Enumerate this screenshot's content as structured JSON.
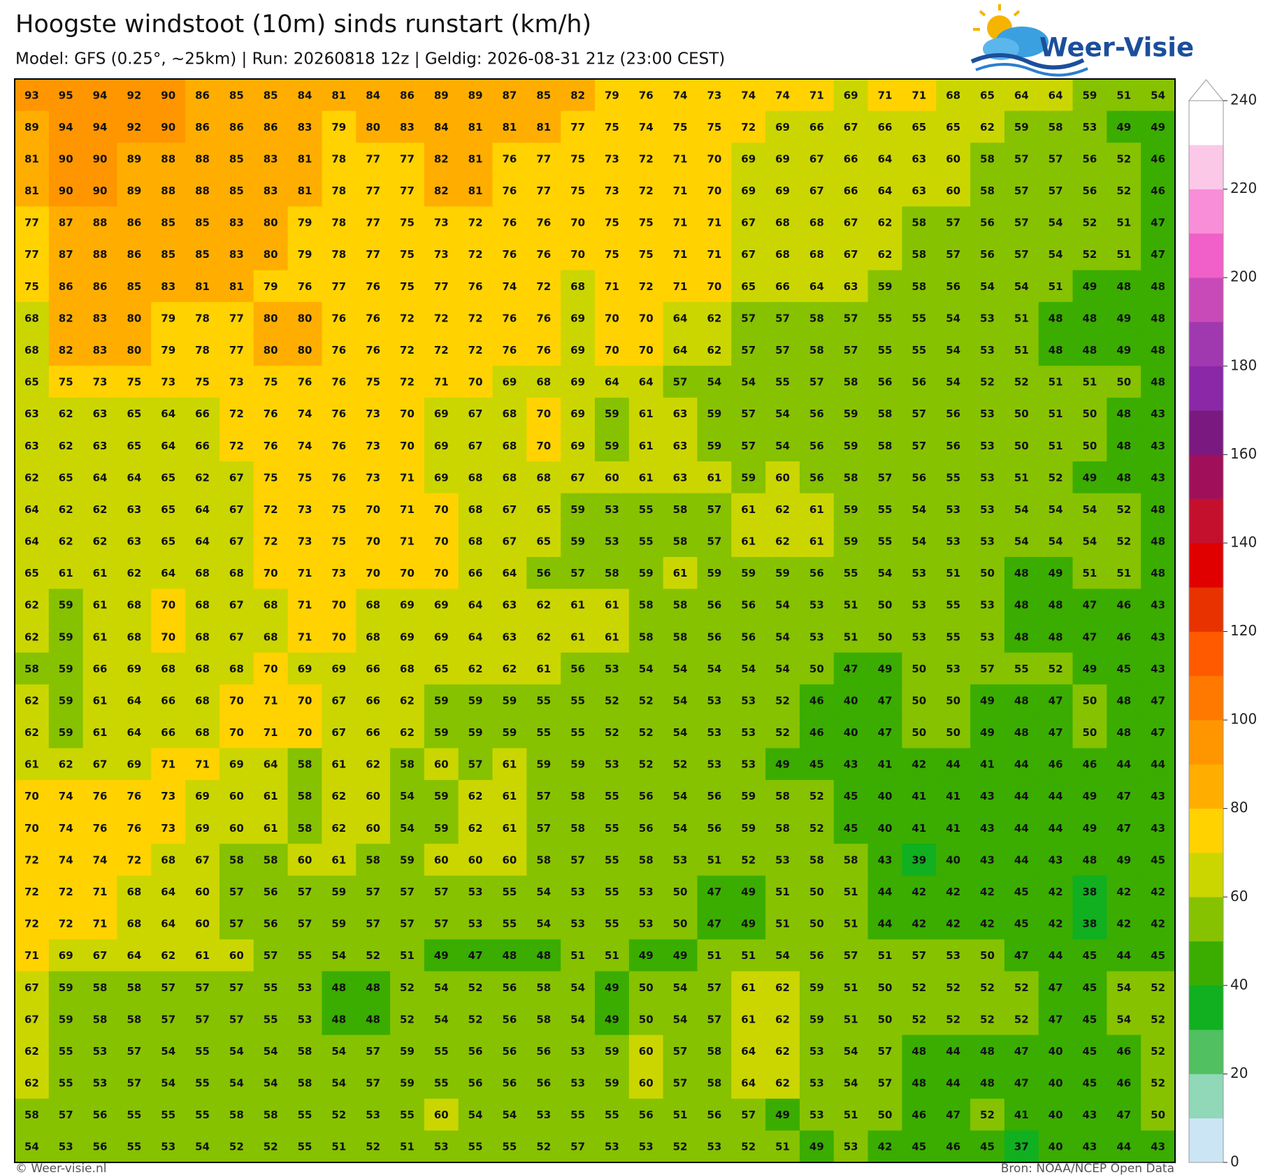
{
  "header": {
    "title": "Hoogste windstoot (10m) sinds runstart (km/h)",
    "subtitle": "Model: GFS (0.25°, ~25km)  |  Run: 20260818 12z  |  Geldig: 2026-08-31 21z (23:00 CEST)",
    "logo": "Weer-Visie"
  },
  "grid": {
    "rows": [
      [
        93,
        95,
        94,
        92,
        90,
        86,
        85,
        85,
        84,
        81,
        84,
        86,
        89,
        89,
        87,
        85,
        82,
        79,
        76,
        74,
        73,
        74,
        74,
        71,
        69,
        71,
        71,
        68,
        65,
        64,
        64,
        59,
        51,
        54
      ],
      [
        89,
        94,
        94,
        92,
        90,
        86,
        86,
        86,
        83,
        79,
        80,
        83,
        84,
        81,
        81,
        81,
        77,
        75,
        74,
        75,
        75,
        72,
        69,
        66,
        67,
        66,
        65,
        65,
        62,
        59,
        58,
        53,
        49,
        49
      ],
      [
        81,
        90,
        90,
        89,
        88,
        88,
        85,
        83,
        81,
        78,
        77,
        77,
        82,
        81,
        76,
        77,
        75,
        73,
        72,
        71,
        70,
        69,
        69,
        67,
        66,
        64,
        63,
        60,
        58,
        57,
        57,
        56,
        52,
        46
      ],
      [
        81,
        90,
        90,
        89,
        88,
        88,
        85,
        83,
        81,
        78,
        77,
        77,
        82,
        81,
        76,
        77,
        75,
        73,
        72,
        71,
        70,
        69,
        69,
        67,
        66,
        64,
        63,
        60,
        58,
        57,
        57,
        56,
        52,
        46
      ],
      [
        77,
        87,
        88,
        86,
        85,
        85,
        83,
        80,
        79,
        78,
        77,
        75,
        73,
        72,
        76,
        76,
        70,
        75,
        75,
        71,
        71,
        67,
        68,
        68,
        67,
        62,
        58,
        57,
        56,
        57,
        54,
        52,
        51,
        47
      ],
      [
        77,
        87,
        88,
        86,
        85,
        85,
        83,
        80,
        79,
        78,
        77,
        75,
        73,
        72,
        76,
        76,
        70,
        75,
        75,
        71,
        71,
        67,
        68,
        68,
        67,
        62,
        58,
        57,
        56,
        57,
        54,
        52,
        51,
        47
      ],
      [
        75,
        86,
        86,
        85,
        83,
        81,
        81,
        79,
        76,
        77,
        76,
        75,
        77,
        76,
        74,
        72,
        68,
        71,
        72,
        71,
        70,
        65,
        66,
        64,
        63,
        59,
        58,
        56,
        54,
        54,
        51,
        49,
        48,
        48
      ],
      [
        68,
        82,
        83,
        80,
        79,
        78,
        77,
        80,
        80,
        76,
        76,
        72,
        72,
        72,
        76,
        76,
        69,
        70,
        70,
        64,
        62,
        57,
        57,
        58,
        57,
        55,
        55,
        54,
        53,
        51,
        48,
        48,
        49,
        48
      ],
      [
        68,
        82,
        83,
        80,
        79,
        78,
        77,
        80,
        80,
        76,
        76,
        72,
        72,
        72,
        76,
        76,
        69,
        70,
        70,
        64,
        62,
        57,
        57,
        58,
        57,
        55,
        55,
        54,
        53,
        51,
        48,
        48,
        49,
        48
      ],
      [
        65,
        75,
        73,
        75,
        73,
        75,
        73,
        75,
        76,
        76,
        75,
        72,
        71,
        70,
        69,
        68,
        69,
        64,
        64,
        57,
        54,
        54,
        55,
        57,
        58,
        56,
        56,
        54,
        52,
        52,
        51,
        51,
        50,
        48
      ],
      [
        63,
        62,
        63,
        65,
        64,
        66,
        72,
        76,
        74,
        76,
        73,
        70,
        69,
        67,
        68,
        70,
        69,
        59,
        61,
        63,
        59,
        57,
        54,
        56,
        59,
        58,
        57,
        56,
        53,
        50,
        51,
        50,
        48,
        43
      ],
      [
        63,
        62,
        63,
        65,
        64,
        66,
        72,
        76,
        74,
        76,
        73,
        70,
        69,
        67,
        68,
        70,
        69,
        59,
        61,
        63,
        59,
        57,
        54,
        56,
        59,
        58,
        57,
        56,
        53,
        50,
        51,
        50,
        48,
        43
      ],
      [
        62,
        65,
        64,
        64,
        65,
        62,
        67,
        75,
        75,
        76,
        73,
        71,
        69,
        68,
        68,
        68,
        67,
        60,
        61,
        63,
        61,
        59,
        60,
        56,
        58,
        57,
        56,
        55,
        53,
        51,
        52,
        49,
        48,
        43
      ],
      [
        64,
        62,
        62,
        63,
        65,
        64,
        67,
        72,
        73,
        75,
        70,
        71,
        70,
        68,
        67,
        65,
        59,
        53,
        55,
        58,
        57,
        61,
        62,
        61,
        59,
        55,
        54,
        53,
        53,
        54,
        54,
        54,
        52,
        48
      ],
      [
        64,
        62,
        62,
        63,
        65,
        64,
        67,
        72,
        73,
        75,
        70,
        71,
        70,
        68,
        67,
        65,
        59,
        53,
        55,
        58,
        57,
        61,
        62,
        61,
        59,
        55,
        54,
        53,
        53,
        54,
        54,
        54,
        52,
        48
      ],
      [
        65,
        61,
        61,
        62,
        64,
        68,
        68,
        70,
        71,
        73,
        70,
        70,
        70,
        66,
        64,
        56,
        57,
        58,
        59,
        61,
        59,
        59,
        59,
        56,
        55,
        54,
        53,
        51,
        50,
        48,
        49,
        51,
        51,
        48
      ],
      [
        62,
        59,
        61,
        68,
        70,
        68,
        67,
        68,
        71,
        70,
        68,
        69,
        69,
        64,
        63,
        62,
        61,
        61,
        58,
        58,
        56,
        56,
        54,
        53,
        51,
        50,
        53,
        55,
        53,
        48,
        48,
        47,
        46,
        43
      ],
      [
        62,
        59,
        61,
        68,
        70,
        68,
        67,
        68,
        71,
        70,
        68,
        69,
        69,
        64,
        63,
        62,
        61,
        61,
        58,
        58,
        56,
        56,
        54,
        53,
        51,
        50,
        53,
        55,
        53,
        48,
        48,
        47,
        46,
        43
      ],
      [
        58,
        59,
        66,
        69,
        68,
        68,
        68,
        70,
        69,
        69,
        66,
        68,
        65,
        62,
        62,
        61,
        56,
        53,
        54,
        54,
        54,
        54,
        54,
        50,
        47,
        49,
        50,
        53,
        57,
        55,
        52,
        49,
        45,
        43
      ],
      [
        62,
        59,
        61,
        64,
        66,
        68,
        70,
        71,
        70,
        67,
        66,
        62,
        59,
        59,
        59,
        55,
        55,
        52,
        52,
        54,
        53,
        53,
        52,
        46,
        40,
        47,
        50,
        50,
        49,
        48,
        47,
        50,
        48,
        47
      ],
      [
        62,
        59,
        61,
        64,
        66,
        68,
        70,
        71,
        70,
        67,
        66,
        62,
        59,
        59,
        59,
        55,
        55,
        52,
        52,
        54,
        53,
        53,
        52,
        46,
        40,
        47,
        50,
        50,
        49,
        48,
        47,
        50,
        48,
        47
      ],
      [
        61,
        62,
        67,
        69,
        71,
        71,
        69,
        64,
        58,
        61,
        62,
        58,
        60,
        57,
        61,
        59,
        59,
        53,
        52,
        52,
        53,
        53,
        49,
        45,
        43,
        41,
        42,
        44,
        41,
        44,
        46,
        46,
        44,
        44
      ],
      [
        70,
        74,
        76,
        76,
        73,
        69,
        60,
        61,
        58,
        62,
        60,
        54,
        59,
        62,
        61,
        57,
        58,
        55,
        56,
        54,
        56,
        59,
        58,
        52,
        45,
        40,
        41,
        41,
        43,
        44,
        44,
        49,
        47,
        43
      ],
      [
        70,
        74,
        76,
        76,
        73,
        69,
        60,
        61,
        58,
        62,
        60,
        54,
        59,
        62,
        61,
        57,
        58,
        55,
        56,
        54,
        56,
        59,
        58,
        52,
        45,
        40,
        41,
        41,
        43,
        44,
        44,
        49,
        47,
        43
      ],
      [
        72,
        74,
        74,
        72,
        68,
        67,
        58,
        58,
        60,
        61,
        58,
        59,
        60,
        60,
        60,
        58,
        57,
        55,
        58,
        53,
        51,
        52,
        53,
        58,
        58,
        43,
        39,
        40,
        43,
        44,
        43,
        48,
        49,
        45
      ],
      [
        72,
        72,
        71,
        68,
        64,
        60,
        57,
        56,
        57,
        59,
        57,
        57,
        57,
        53,
        55,
        54,
        53,
        55,
        53,
        50,
        47,
        49,
        51,
        50,
        51,
        44,
        42,
        42,
        42,
        45,
        42,
        38,
        42,
        42
      ],
      [
        72,
        72,
        71,
        68,
        64,
        60,
        57,
        56,
        57,
        59,
        57,
        57,
        57,
        53,
        55,
        54,
        53,
        55,
        53,
        50,
        47,
        49,
        51,
        50,
        51,
        44,
        42,
        42,
        42,
        45,
        42,
        38,
        42,
        42
      ],
      [
        71,
        69,
        67,
        64,
        62,
        61,
        60,
        57,
        55,
        54,
        52,
        51,
        49,
        47,
        48,
        48,
        51,
        51,
        49,
        49,
        51,
        51,
        54,
        56,
        57,
        51,
        57,
        53,
        50,
        47,
        44,
        45,
        44,
        45
      ],
      [
        67,
        59,
        58,
        58,
        57,
        57,
        57,
        55,
        53,
        48,
        48,
        52,
        54,
        52,
        56,
        58,
        54,
        49,
        50,
        54,
        57,
        61,
        62,
        59,
        51,
        50,
        52,
        52,
        52,
        52,
        47,
        45,
        54,
        52
      ],
      [
        67,
        59,
        58,
        58,
        57,
        57,
        57,
        55,
        53,
        48,
        48,
        52,
        54,
        52,
        56,
        58,
        54,
        49,
        50,
        54,
        57,
        61,
        62,
        59,
        51,
        50,
        52,
        52,
        52,
        52,
        47,
        45,
        54,
        52
      ],
      [
        62,
        55,
        53,
        57,
        54,
        55,
        54,
        54,
        58,
        54,
        57,
        59,
        55,
        56,
        56,
        56,
        53,
        59,
        60,
        57,
        58,
        64,
        62,
        53,
        54,
        57,
        48,
        44,
        48,
        47,
        40,
        45,
        46,
        52
      ],
      [
        62,
        55,
        53,
        57,
        54,
        55,
        54,
        54,
        58,
        54,
        57,
        59,
        55,
        56,
        56,
        56,
        53,
        59,
        60,
        57,
        58,
        64,
        62,
        53,
        54,
        57,
        48,
        44,
        48,
        47,
        40,
        45,
        46,
        52
      ],
      [
        58,
        57,
        56,
        55,
        55,
        55,
        58,
        58,
        55,
        52,
        53,
        55,
        60,
        54,
        54,
        53,
        55,
        55,
        56,
        51,
        56,
        57,
        49,
        53,
        51,
        50,
        46,
        47,
        52,
        41,
        40,
        43,
        47,
        50
      ],
      [
        54,
        53,
        56,
        55,
        53,
        54,
        52,
        52,
        55,
        51,
        52,
        51,
        53,
        55,
        55,
        52,
        57,
        53,
        53,
        52,
        53,
        52,
        51,
        49,
        53,
        42,
        45,
        46,
        45,
        37,
        40,
        43,
        44,
        43
      ]
    ]
  },
  "colorbar": {
    "lim": [
      0,
      240
    ],
    "ticks": [
      0,
      20,
      40,
      60,
      80,
      100,
      120,
      140,
      160,
      180,
      200,
      220,
      240
    ],
    "colors": [
      "#cce5f5",
      "#90d8b8",
      "#50c060",
      "#10b020",
      "#3aad00",
      "#86c200",
      "#cbd600",
      "#ffd200",
      "#ffae00",
      "#ff9600",
      "#ff7800",
      "#ff5a00",
      "#e83200",
      "#e00000",
      "#c4102c",
      "#a0105a",
      "#7a1a80",
      "#8a28a8",
      "#a038b0",
      "#c84ab8",
      "#f060c8",
      "#f88ed8",
      "#fcc8e8",
      "#ffffff"
    ]
  },
  "footer": {
    "left": "© Weer-visie.nl",
    "right": "Bron: NOAA/NCEP Open Data"
  }
}
